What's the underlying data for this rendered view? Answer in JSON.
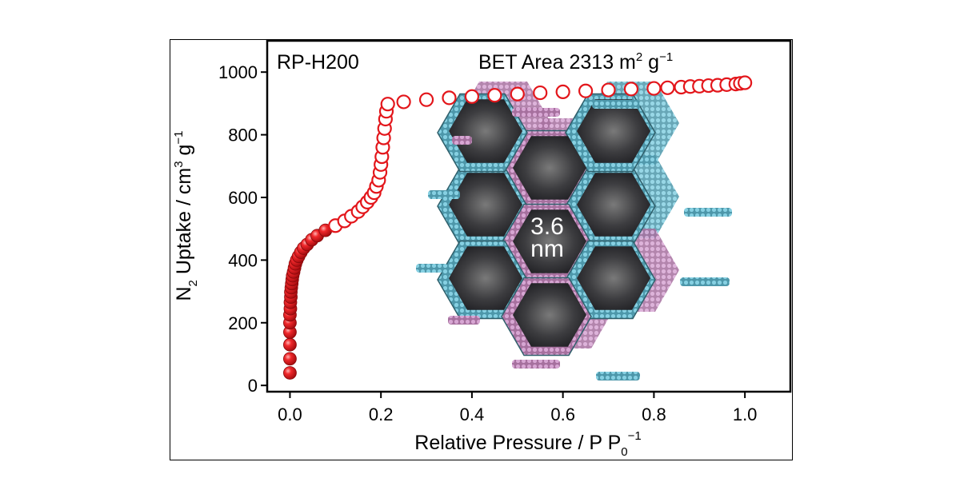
{
  "chart_data": {
    "type": "scatter",
    "sample_label": "RP-H200",
    "bet_annotation": {
      "prefix": "BET Area 2313 m",
      "sup1": "2",
      "middle": " g",
      "sup2": "−1"
    },
    "pore_label": {
      "value": "3.6",
      "unit": "nm"
    },
    "xlabel": {
      "main": "Relative Pressure / P P",
      "sub": "0",
      "sup": "−1"
    },
    "ylabel": {
      "n": "N",
      "sub": "2",
      "mid": " Uptake / cm",
      "sup1": "3",
      "g": " g",
      "sup2": "−1"
    },
    "xlim": [
      -0.05,
      1.1
    ],
    "ylim": [
      -20,
      1100
    ],
    "xticks": [
      "0.0",
      "0.2",
      "0.4",
      "0.6",
      "0.8",
      "1.0"
    ],
    "xtick_values": [
      0.0,
      0.2,
      0.4,
      0.6,
      0.8,
      1.0
    ],
    "yticks": [
      "0",
      "200",
      "400",
      "600",
      "800",
      "1000"
    ],
    "ytick_values": [
      0,
      200,
      400,
      600,
      800,
      1000
    ],
    "series": [
      {
        "marker": "filled",
        "color": "#e3161b",
        "x": [
          0.0,
          0.0,
          0.0,
          0.0,
          0.0,
          0.0,
          0.001,
          0.001,
          0.002,
          0.002,
          0.003,
          0.004,
          0.005,
          0.006,
          0.008,
          0.01,
          0.012,
          0.015,
          0.019,
          0.024,
          0.03,
          0.038,
          0.048,
          0.06,
          0.078
        ],
        "y": [
          40,
          85,
          130,
          170,
          200,
          225,
          245,
          265,
          282,
          298,
          312,
          325,
          338,
          350,
          362,
          375,
          388,
          400,
          412,
          425,
          438,
          450,
          465,
          478,
          495
        ]
      },
      {
        "marker": "open",
        "color": "#e3161b",
        "x": [
          0.1,
          0.12,
          0.135,
          0.15,
          0.16,
          0.17,
          0.178,
          0.185,
          0.19,
          0.195,
          0.198,
          0.2,
          0.202,
          0.204,
          0.206,
          0.208,
          0.21,
          0.212,
          0.215,
          0.25,
          0.3,
          0.35,
          0.4,
          0.45,
          0.5,
          0.55,
          0.6,
          0.65,
          0.7,
          0.75,
          0.8,
          0.83,
          0.86,
          0.88,
          0.9,
          0.92,
          0.94,
          0.96,
          0.98,
          0.99,
          1.0
        ],
        "y": [
          510,
          525,
          540,
          555,
          570,
          585,
          600,
          615,
          635,
          655,
          680,
          705,
          730,
          760,
          790,
          820,
          850,
          875,
          898,
          905,
          912,
          918,
          922,
          926,
          930,
          934,
          937,
          940,
          943,
          946,
          948,
          950,
          952,
          954,
          955,
          957,
          958,
          960,
          962,
          964,
          966
        ]
      }
    ]
  }
}
